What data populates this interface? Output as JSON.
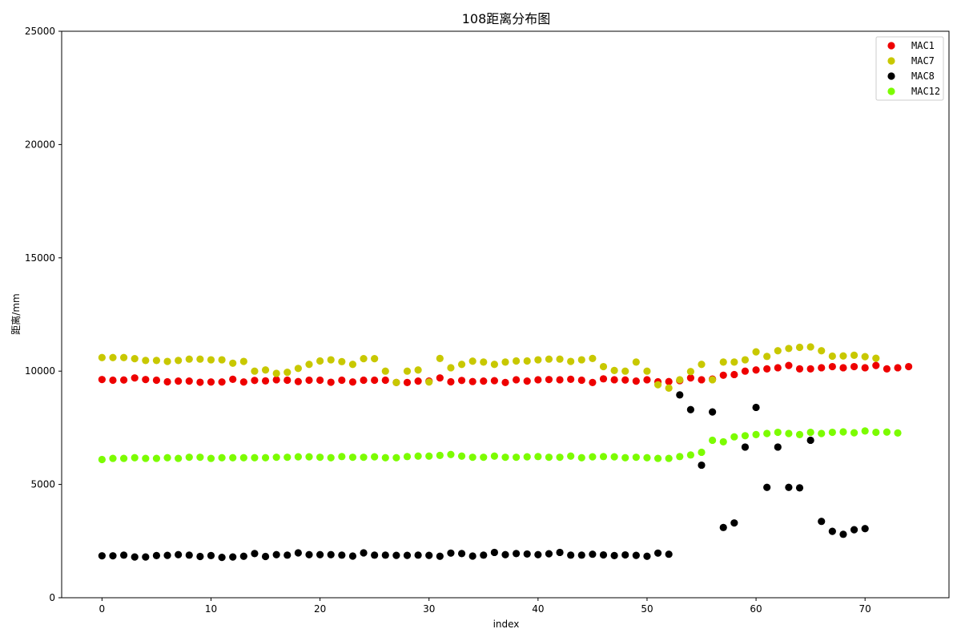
{
  "chart_data": {
    "type": "scatter",
    "title": "108距离分布图",
    "xlabel": "index",
    "ylabel": "距离/mm",
    "xlim": [
      -3.7,
      77.7
    ],
    "ylim": [
      0,
      25000
    ],
    "xticks": [
      0,
      10,
      20,
      30,
      40,
      50,
      60,
      70
    ],
    "yticks": [
      0,
      5000,
      10000,
      15000,
      20000,
      25000
    ],
    "legend_position": "top-right",
    "series": [
      {
        "name": "MAC1",
        "color": "#ee0000",
        "x_start": 0,
        "values": [
          9630,
          9600,
          9610,
          9700,
          9630,
          9600,
          9530,
          9560,
          9560,
          9510,
          9520,
          9520,
          9640,
          9520,
          9590,
          9570,
          9620,
          9600,
          9540,
          9600,
          9600,
          9510,
          9600,
          9520,
          9600,
          9600,
          9600,
          9500,
          9500,
          9560,
          9560,
          9700,
          9530,
          9590,
          9540,
          9560,
          9580,
          9500,
          9620,
          9560,
          9620,
          9630,
          9620,
          9640,
          9600,
          9500,
          9660,
          9620,
          9610,
          9560,
          9620,
          9530,
          9540,
          9580,
          9700,
          9620,
          9650,
          9820,
          9850,
          10000,
          10050,
          10100,
          10150,
          10250,
          10100,
          10100,
          10150,
          10200,
          10150,
          10200,
          10150,
          10250,
          10100,
          10150,
          10200
        ]
      },
      {
        "name": "MAC7",
        "color": "#c8c800",
        "x_start": 0,
        "values": [
          10600,
          10600,
          10600,
          10550,
          10470,
          10470,
          10430,
          10470,
          10530,
          10530,
          10500,
          10500,
          10350,
          10430,
          10000,
          10050,
          9900,
          9950,
          10120,
          10300,
          10450,
          10500,
          10420,
          10300,
          10550,
          10550,
          10000,
          9500,
          10000,
          10050,
          9520,
          10560,
          10150,
          10300,
          10440,
          10400,
          10300,
          10400,
          10450,
          10450,
          10500,
          10530,
          10530,
          10430,
          10500,
          10560,
          10200,
          10030,
          10000,
          10400,
          10000,
          9400,
          9250,
          9620,
          9980,
          10300,
          9620,
          10400,
          10400,
          10500,
          10850,
          10650,
          10900,
          11000,
          11050,
          11070,
          10900,
          10660,
          10670,
          10700,
          10640,
          10570
        ]
      },
      {
        "name": "MAC8",
        "color": "#000000",
        "x_start": 0,
        "values": [
          1850,
          1850,
          1880,
          1800,
          1800,
          1860,
          1870,
          1900,
          1880,
          1820,
          1860,
          1780,
          1800,
          1830,
          1950,
          1820,
          1900,
          1880,
          1980,
          1900,
          1900,
          1900,
          1880,
          1840,
          1980,
          1880,
          1880,
          1870,
          1870,
          1880,
          1870,
          1830,
          1970,
          1950,
          1840,
          1880,
          2000,
          1900,
          1950,
          1930,
          1900,
          1940,
          2000,
          1880,
          1880,
          1920,
          1890,
          1860,
          1890,
          1870,
          1830,
          1970,
          1920,
          8950,
          8300,
          5850,
          8200,
          3100,
          3300,
          6650,
          8400,
          4870,
          6650,
          4870,
          4850,
          6950,
          3370,
          2930,
          2800,
          3000,
          3050
        ]
      },
      {
        "name": "MAC12",
        "color": "#7cfc00",
        "x_start": 0,
        "values": [
          6100,
          6150,
          6150,
          6180,
          6150,
          6150,
          6180,
          6150,
          6200,
          6200,
          6150,
          6180,
          6180,
          6180,
          6180,
          6180,
          6200,
          6200,
          6220,
          6220,
          6200,
          6180,
          6230,
          6200,
          6200,
          6220,
          6180,
          6180,
          6230,
          6250,
          6250,
          6280,
          6320,
          6250,
          6200,
          6200,
          6250,
          6200,
          6200,
          6220,
          6230,
          6200,
          6200,
          6250,
          6180,
          6220,
          6230,
          6220,
          6180,
          6200,
          6180,
          6150,
          6150,
          6230,
          6300,
          6420,
          6950,
          6880,
          7100,
          7150,
          7200,
          7250,
          7300,
          7250,
          7200,
          7300,
          7250,
          7300,
          7320,
          7280,
          7360,
          7300,
          7310,
          7270
        ]
      }
    ]
  }
}
